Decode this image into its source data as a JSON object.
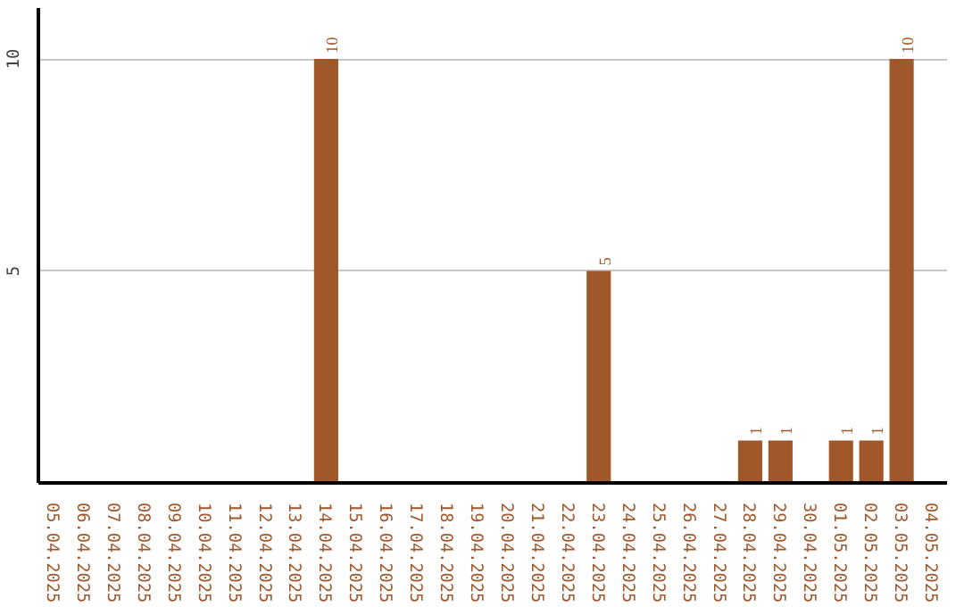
{
  "chart_data": {
    "type": "bar",
    "categories": [
      "05.04.2025",
      "06.04.2025",
      "07.04.2025",
      "08.04.2025",
      "09.04.2025",
      "10.04.2025",
      "11.04.2025",
      "12.04.2025",
      "13.04.2025",
      "14.04.2025",
      "15.04.2025",
      "16.04.2025",
      "17.04.2025",
      "18.04.2025",
      "19.04.2025",
      "20.04.2025",
      "21.04.2025",
      "22.04.2025",
      "23.04.2025",
      "24.04.2025",
      "25.04.2025",
      "26.04.2025",
      "27.04.2025",
      "28.04.2025",
      "29.04.2025",
      "30.04.2025",
      "01.05.2025",
      "02.05.2025",
      "03.05.2025",
      "04.05.2025"
    ],
    "values": [
      0,
      0,
      0,
      0,
      0,
      0,
      0,
      0,
      0,
      10,
      0,
      0,
      0,
      0,
      0,
      0,
      0,
      0,
      5,
      0,
      0,
      0,
      0,
      1,
      1,
      0,
      1,
      1,
      10,
      0
    ],
    "value_labels": [
      null,
      null,
      null,
      null,
      null,
      null,
      null,
      null,
      null,
      "10",
      null,
      null,
      null,
      null,
      null,
      null,
      null,
      null,
      "5",
      null,
      null,
      null,
      null,
      "1",
      "1",
      null,
      "1",
      "1",
      "10",
      null
    ],
    "color": "#a0572a",
    "ylim": [
      0,
      11.2
    ],
    "yticks": [
      5,
      10
    ],
    "grid": "y"
  }
}
